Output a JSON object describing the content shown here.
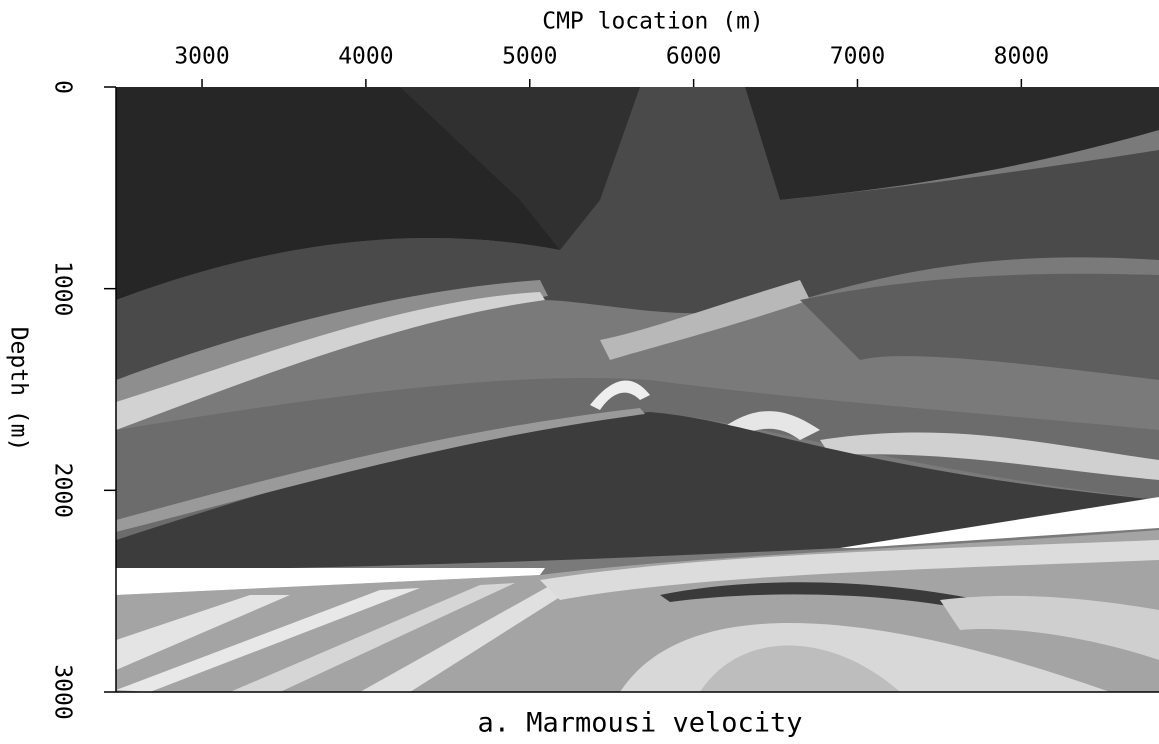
{
  "chart_data": {
    "type": "image",
    "title": "a. Marmousi velocity",
    "x_label": "CMP location (m)",
    "y_label": "Depth (m)",
    "xlim": [
      2475,
      8840
    ],
    "ylim": [
      0,
      3000
    ],
    "xticks": [
      3000,
      4000,
      5000,
      6000,
      7000,
      8000
    ],
    "yticks": [
      0,
      1000,
      2000,
      3000
    ],
    "y_inverted": true,
    "x_axis_position": "top"
  }
}
